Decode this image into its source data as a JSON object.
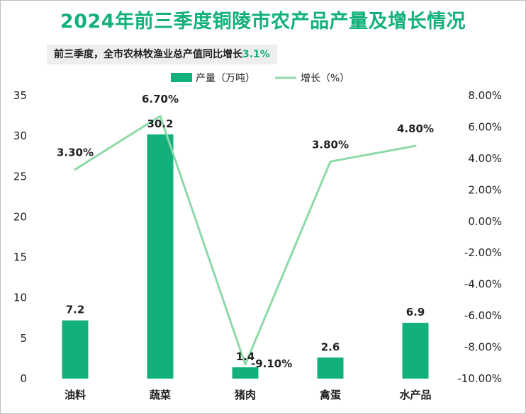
{
  "title": "2024年前三季度铜陵市农产品产量及增长情况",
  "subtitle": {
    "text": "前三季度，全市农林牧渔业总产值同比增长",
    "highlight": "3.1%"
  },
  "colors": {
    "title": "#12b07c",
    "bar": "#12b07c",
    "line": "#8ed9a8"
  },
  "chart_data": {
    "type": "bar",
    "categories": [
      "油料",
      "蔬菜",
      "猪肉",
      "禽蛋",
      "水产品"
    ],
    "series": [
      {
        "name": "产量（万吨）",
        "type": "bar",
        "axis": "left",
        "values": [
          7.2,
          30.2,
          1.4,
          2.6,
          6.9
        ],
        "labels": [
          "7.2",
          "30.2",
          "1.4",
          "2.6",
          "6.9"
        ]
      },
      {
        "name": "增长（%）",
        "type": "line",
        "axis": "right",
        "values": [
          3.3,
          6.7,
          -9.1,
          3.8,
          4.8
        ],
        "labels": [
          "3.30%",
          "6.70%",
          "-9.10%",
          "3.80%",
          "4.80%"
        ]
      }
    ],
    "y_left": {
      "range": [
        0,
        35
      ],
      "ticks": [
        "0",
        "5",
        "10",
        "15",
        "20",
        "25",
        "30",
        "35"
      ]
    },
    "y_right": {
      "range": [
        -10,
        8
      ],
      "ticks": [
        "-10.00%",
        "-8.00%",
        "-6.00%",
        "-4.00%",
        "-2.00%",
        "0.00%",
        "2.00%",
        "4.00%",
        "6.00%",
        "8.00%"
      ]
    },
    "legend_position": "top",
    "grid": false
  }
}
